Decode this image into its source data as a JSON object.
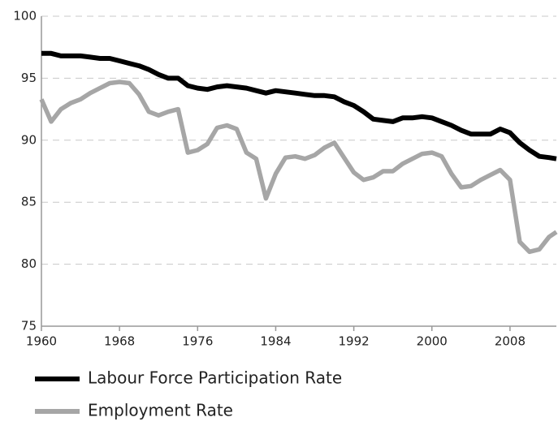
{
  "chart_data": {
    "type": "line",
    "x": [
      1960,
      1961,
      1962,
      1963,
      1964,
      1965,
      1966,
      1967,
      1968,
      1969,
      1970,
      1971,
      1972,
      1973,
      1974,
      1975,
      1976,
      1977,
      1978,
      1979,
      1980,
      1981,
      1982,
      1983,
      1984,
      1985,
      1986,
      1987,
      1988,
      1989,
      1990,
      1991,
      1992,
      1993,
      1994,
      1995,
      1996,
      1997,
      1998,
      1999,
      2000,
      2001,
      2002,
      2003,
      2004,
      2005,
      2006,
      2007,
      2008,
      2009,
      2010,
      2011,
      2012,
      2012.75
    ],
    "series": [
      {
        "name": "Labour Force Participation Rate",
        "color": "#000000",
        "values": [
          97.0,
          97.0,
          96.8,
          96.8,
          96.8,
          96.7,
          96.6,
          96.6,
          96.4,
          96.2,
          96.0,
          95.7,
          95.3,
          95.0,
          95.0,
          94.4,
          94.2,
          94.1,
          94.3,
          94.4,
          94.3,
          94.2,
          94.0,
          93.8,
          94.0,
          93.9,
          93.8,
          93.7,
          93.6,
          93.6,
          93.5,
          93.1,
          92.8,
          92.3,
          91.7,
          91.6,
          91.5,
          91.8,
          91.8,
          91.9,
          91.8,
          91.5,
          91.2,
          90.8,
          90.5,
          90.5,
          90.5,
          90.9,
          90.6,
          89.8,
          89.2,
          88.7,
          88.6,
          88.5
        ]
      },
      {
        "name": "Employment Rate",
        "color": "#a6a6a6",
        "values": [
          93.3,
          91.5,
          92.5,
          93.0,
          93.3,
          93.8,
          94.2,
          94.6,
          94.7,
          94.6,
          93.7,
          92.3,
          92.0,
          92.3,
          92.5,
          89.0,
          89.2,
          89.7,
          91.0,
          91.2,
          90.9,
          89.0,
          88.5,
          85.3,
          87.3,
          88.6,
          88.7,
          88.5,
          88.8,
          89.4,
          89.8,
          88.6,
          87.4,
          86.8,
          87.0,
          87.5,
          87.5,
          88.1,
          88.5,
          88.9,
          89.0,
          88.7,
          87.3,
          86.2,
          86.3,
          86.8,
          87.2,
          87.6,
          86.8,
          81.8,
          81.0,
          81.2,
          82.2,
          82.6
        ]
      }
    ],
    "xlim": [
      1960,
      2012.75
    ],
    "xticks": [
      1960,
      1968,
      1976,
      1984,
      1992,
      2000,
      2008
    ],
    "ylim": [
      75,
      100
    ],
    "yticks": [
      75,
      80,
      85,
      90,
      95,
      100
    ],
    "grid": true,
    "legend": "bottom"
  }
}
